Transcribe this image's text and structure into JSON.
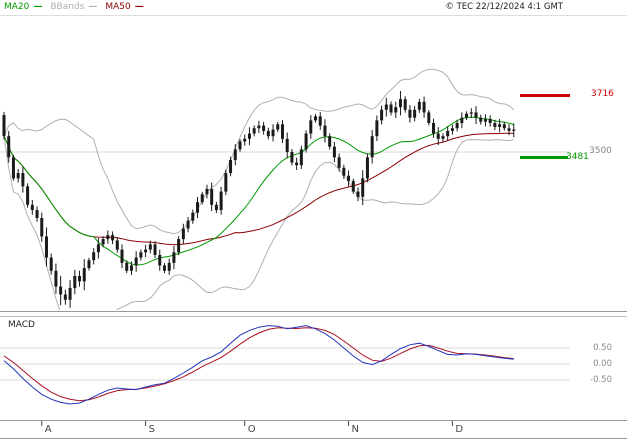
{
  "header": {
    "legend": [
      {
        "label": "MA20"
      },
      {
        "label": "BBands"
      },
      {
        "label": "MA50"
      }
    ],
    "dash": "—",
    "copyright": "© TEC 22/12/2024 4:1 GMT"
  },
  "colors": {
    "ma20": "#009900",
    "bbands": "#b0b0b0",
    "ma50": "#8b0000",
    "candle": "#1a1a1a",
    "macd_line": "#2233bb",
    "macd_signal": "#aa1122",
    "resistance": "#cc0000",
    "support": "#009900",
    "gridline": "#d8d8d8",
    "axis_text": "#888888",
    "month_text": "#444444",
    "tick": "#444444"
  },
  "chart_data": [
    {
      "type": "candlestick",
      "name": "price",
      "title": "",
      "ylim": [
        2901,
        4015
      ],
      "first_open": 3640,
      "closes": [
        3560,
        3480,
        3400,
        3420,
        3370,
        3300,
        3280,
        3250,
        3180,
        3100,
        3050,
        2990,
        2960,
        2940,
        2985,
        3030,
        3010,
        3060,
        3090,
        3120,
        3150,
        3170,
        3185,
        3165,
        3130,
        3080,
        3050,
        3070,
        3100,
        3120,
        3130,
        3150,
        3110,
        3070,
        3050,
        3080,
        3120,
        3170,
        3210,
        3240,
        3270,
        3310,
        3340,
        3360,
        3300,
        3280,
        3350,
        3420,
        3470,
        3510,
        3540,
        3550,
        3570,
        3590,
        3600,
        3580,
        3560,
        3585,
        3605,
        3550,
        3500,
        3460,
        3450,
        3510,
        3570,
        3620,
        3635,
        3600,
        3560,
        3520,
        3480,
        3440,
        3410,
        3390,
        3350,
        3330,
        3400,
        3480,
        3560,
        3620,
        3660,
        3680,
        3650,
        3670,
        3700,
        3660,
        3630,
        3660,
        3690,
        3650,
        3610,
        3570,
        3550,
        3560,
        3580,
        3590,
        3610,
        3630,
        3645,
        3650,
        3630,
        3615,
        3625,
        3610,
        3595,
        3605,
        3590,
        3580,
        3585
      ],
      "wick_pattern": [
        12,
        20,
        9,
        16,
        24,
        11,
        18,
        14
      ],
      "volatility_zones": [
        {
          "from": 8,
          "to": 17,
          "mult": 1.7
        },
        {
          "from": 76,
          "to": 84,
          "mult": 1.3
        }
      ],
      "overlays": {
        "ma20_window": 20,
        "ma50_window": 50,
        "bollinger_window": 20,
        "bollinger_k": 2
      },
      "annotations": {
        "resistance": {
          "label": "3716",
          "value": 3716
        },
        "support": {
          "label": "3481",
          "value": 3481
        },
        "gridline": {
          "label": "3500",
          "value": 3500
        }
      },
      "x_months": [
        {
          "label": "A",
          "bar_index": 8
        },
        {
          "label": "S",
          "bar_index": 30
        },
        {
          "label": "O",
          "bar_index": 51
        },
        {
          "label": "N",
          "bar_index": 73
        },
        {
          "label": "D",
          "bar_index": 95
        }
      ]
    },
    {
      "type": "line",
      "name": "macd",
      "title": "MACD",
      "ylim": [
        -1.72,
        1.47
      ],
      "x_step_bars": 2,
      "axis_labels": [
        {
          "label": "0.50",
          "value": 0.5
        },
        {
          "label": "0.00",
          "value": 0.0
        },
        {
          "label": "-0.50",
          "value": -0.5
        }
      ],
      "series": [
        {
          "name": "macd",
          "values": [
            0.1,
            -0.15,
            -0.45,
            -0.72,
            -0.95,
            -1.1,
            -1.2,
            -1.25,
            -1.22,
            -1.1,
            -0.95,
            -0.82,
            -0.75,
            -0.78,
            -0.8,
            -0.72,
            -0.65,
            -0.6,
            -0.45,
            -0.28,
            -0.1,
            0.1,
            0.22,
            0.38,
            0.65,
            0.9,
            1.05,
            1.15,
            1.2,
            1.18,
            1.1,
            1.15,
            1.2,
            1.1,
            0.95,
            0.75,
            0.5,
            0.25,
            0.05,
            -0.02,
            0.1,
            0.3,
            0.48,
            0.6,
            0.65,
            0.55,
            0.42,
            0.3,
            0.28,
            0.32,
            0.3,
            0.26,
            0.22,
            0.18,
            0.15
          ]
        },
        {
          "name": "signal",
          "values": [
            0.25,
            0.05,
            -0.2,
            -0.45,
            -0.68,
            -0.88,
            -1.02,
            -1.1,
            -1.15,
            -1.12,
            -1.03,
            -0.92,
            -0.83,
            -0.8,
            -0.79,
            -0.75,
            -0.69,
            -0.62,
            -0.52,
            -0.4,
            -0.25,
            -0.08,
            0.06,
            0.2,
            0.4,
            0.62,
            0.82,
            0.97,
            1.08,
            1.13,
            1.12,
            1.11,
            1.13,
            1.12,
            1.05,
            0.92,
            0.72,
            0.5,
            0.28,
            0.12,
            0.08,
            0.18,
            0.33,
            0.47,
            0.57,
            0.58,
            0.5,
            0.4,
            0.33,
            0.32,
            0.31,
            0.28,
            0.24,
            0.2,
            0.17
          ]
        }
      ]
    }
  ]
}
